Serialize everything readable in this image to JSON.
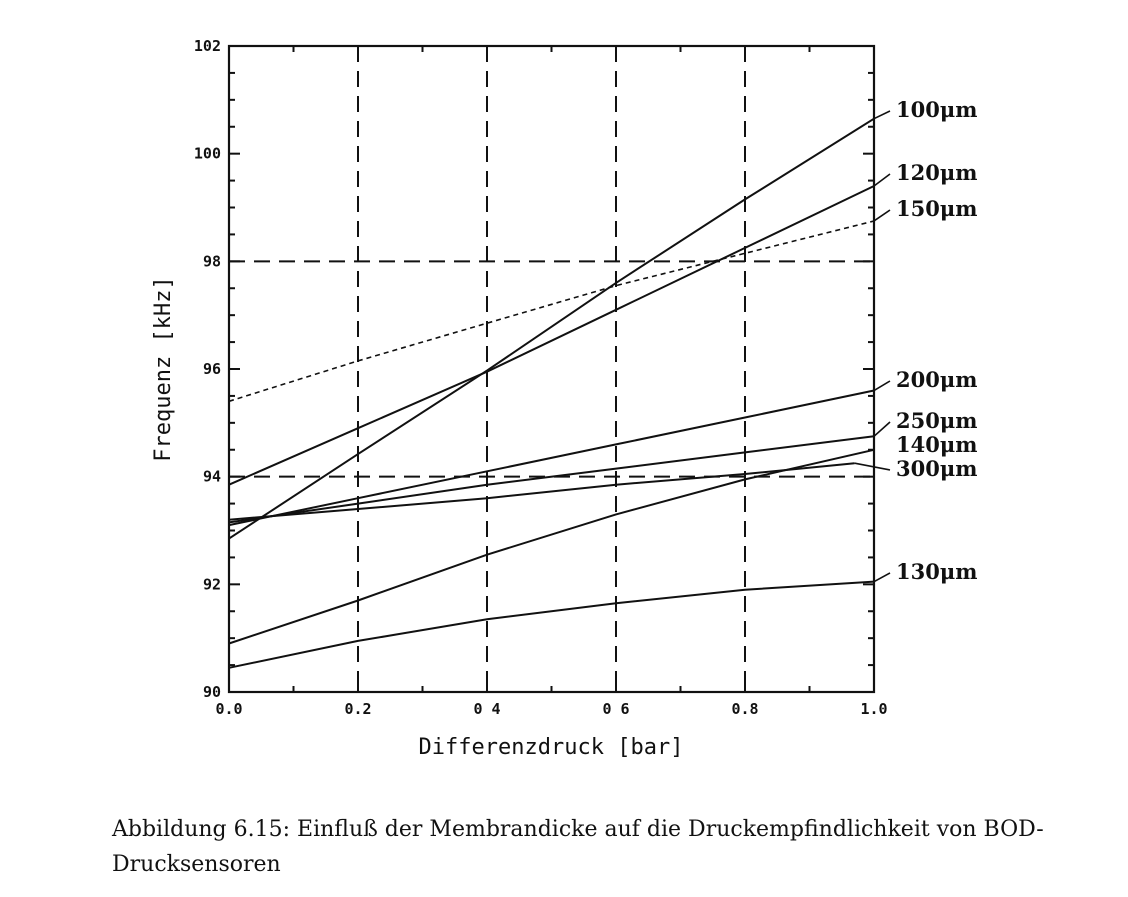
{
  "chart_data": {
    "type": "line",
    "xlabel": "Differenzdruck [bar]",
    "ylabel": "Frequenz [kHz]",
    "xlim": [
      0,
      1
    ],
    "ylim": [
      90,
      102
    ],
    "x_ticks": [
      0,
      0.1,
      0.2,
      0.3,
      0.4,
      0.5,
      0.6,
      0.7,
      0.8,
      0.9,
      1.0
    ],
    "x_tick_labels": [
      "0.0",
      "0.2",
      "0 4",
      "0 6",
      "0.8",
      "1.0"
    ],
    "x_tick_label_values": [
      0,
      0.2,
      0.4,
      0.6,
      0.8,
      1.0
    ],
    "y_ticks": [
      90,
      92,
      94,
      96,
      98,
      100,
      102
    ],
    "y_tick_labels": [
      "90",
      "92",
      "94",
      "96",
      "98",
      "100",
      "102"
    ],
    "grid_x": [
      0.2,
      0.4,
      0.6,
      0.8
    ],
    "grid_y": [
      94,
      98
    ],
    "grid_style": "dashed",
    "series": [
      {
        "name": "100μm",
        "x": [
          0,
          0.2,
          0.4,
          0.6,
          0.8,
          1.0
        ],
        "y": [
          92.85,
          94.42,
          95.97,
          97.6,
          99.15,
          100.65
        ],
        "style": "solid"
      },
      {
        "name": "120μm",
        "x": [
          0,
          0.2,
          0.4,
          0.6,
          0.8,
          1.0
        ],
        "y": [
          93.85,
          94.9,
          95.95,
          97.1,
          98.25,
          99.4
        ],
        "style": "solid"
      },
      {
        "name": "150μm",
        "x": [
          0,
          0.2,
          0.4,
          0.6,
          0.8,
          1.0
        ],
        "y": [
          95.4,
          96.15,
          96.85,
          97.55,
          98.15,
          98.75
        ],
        "style": "dotted"
      },
      {
        "name": "200μm",
        "x": [
          0,
          0.2,
          0.4,
          0.6,
          0.8,
          1.0
        ],
        "y": [
          93.1,
          93.6,
          94.1,
          94.6,
          95.1,
          95.6
        ],
        "style": "solid"
      },
      {
        "name": "250μm",
        "x": [
          0,
          0.2,
          0.4,
          0.6,
          0.8,
          1.0
        ],
        "y": [
          93.15,
          93.5,
          93.85,
          94.15,
          94.45,
          94.75
        ],
        "style": "solid"
      },
      {
        "name": "140μm",
        "x": [
          0,
          0.2,
          0.4,
          0.6,
          0.8,
          1.0
        ],
        "y": [
          90.9,
          91.7,
          92.55,
          93.3,
          93.95,
          94.5
        ],
        "style": "solid"
      },
      {
        "name": "300μm",
        "x": [
          0,
          0.2,
          0.4,
          0.6,
          0.8,
          0.97
        ],
        "y": [
          93.2,
          93.4,
          93.6,
          93.85,
          94.05,
          94.25
        ],
        "style": "solid"
      },
      {
        "name": "130μm",
        "x": [
          0,
          0.2,
          0.4,
          0.6,
          0.8,
          1.0
        ],
        "y": [
          90.45,
          90.95,
          91.35,
          91.65,
          91.9,
          92.05
        ],
        "style": "solid"
      }
    ]
  },
  "caption": {
    "text": "Abbildung 6.15: Einfluß der Membrandicke auf die Druckempfindlichkeit von BOD-Drucksensoren"
  }
}
